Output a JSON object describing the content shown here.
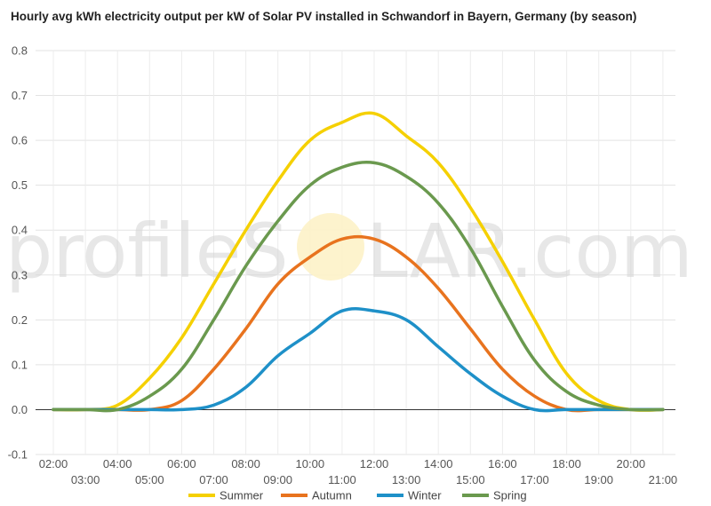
{
  "chart_data": {
    "type": "line",
    "title": "Hourly avg kWh electricity output per kW of Solar PV installed in Schwandorf in Bayern, Germany (by season)",
    "xlabel": "",
    "ylabel": "",
    "ylim": [
      -0.1,
      0.8
    ],
    "yticks": [
      "-0.1",
      "0.0",
      "0.1",
      "0.2",
      "0.3",
      "0.4",
      "0.5",
      "0.6",
      "0.7",
      "0.8"
    ],
    "x": [
      "02:00",
      "03:00",
      "04:00",
      "05:00",
      "06:00",
      "07:00",
      "08:00",
      "09:00",
      "10:00",
      "11:00",
      "12:00",
      "13:00",
      "14:00",
      "15:00",
      "16:00",
      "17:00",
      "18:00",
      "19:00",
      "20:00",
      "21:00"
    ],
    "grid": true,
    "legend_position": "bottom",
    "series": [
      {
        "name": "Summer",
        "color": "#f5d000",
        "values": [
          0.0,
          0.0,
          0.01,
          0.07,
          0.16,
          0.28,
          0.4,
          0.51,
          0.6,
          0.64,
          0.66,
          0.61,
          0.55,
          0.45,
          0.33,
          0.2,
          0.08,
          0.02,
          0.0,
          0.0
        ]
      },
      {
        "name": "Autumn",
        "color": "#e8731e",
        "values": [
          0.0,
          0.0,
          0.0,
          0.0,
          0.02,
          0.09,
          0.18,
          0.28,
          0.34,
          0.38,
          0.38,
          0.34,
          0.27,
          0.18,
          0.09,
          0.03,
          0.0,
          0.0,
          0.0,
          0.0
        ]
      },
      {
        "name": "Winter",
        "color": "#1e90c8",
        "values": [
          0.0,
          0.0,
          0.0,
          0.0,
          0.0,
          0.01,
          0.05,
          0.12,
          0.17,
          0.22,
          0.22,
          0.2,
          0.14,
          0.08,
          0.03,
          0.0,
          0.0,
          0.0,
          0.0,
          0.0
        ]
      },
      {
        "name": "Spring",
        "color": "#6a994e",
        "values": [
          0.0,
          0.0,
          0.0,
          0.03,
          0.09,
          0.2,
          0.32,
          0.42,
          0.5,
          0.54,
          0.55,
          0.52,
          0.46,
          0.36,
          0.23,
          0.11,
          0.04,
          0.01,
          0.0,
          0.0
        ]
      }
    ]
  },
  "watermark": {
    "left": "profileS",
    "right": "LAR.com"
  }
}
